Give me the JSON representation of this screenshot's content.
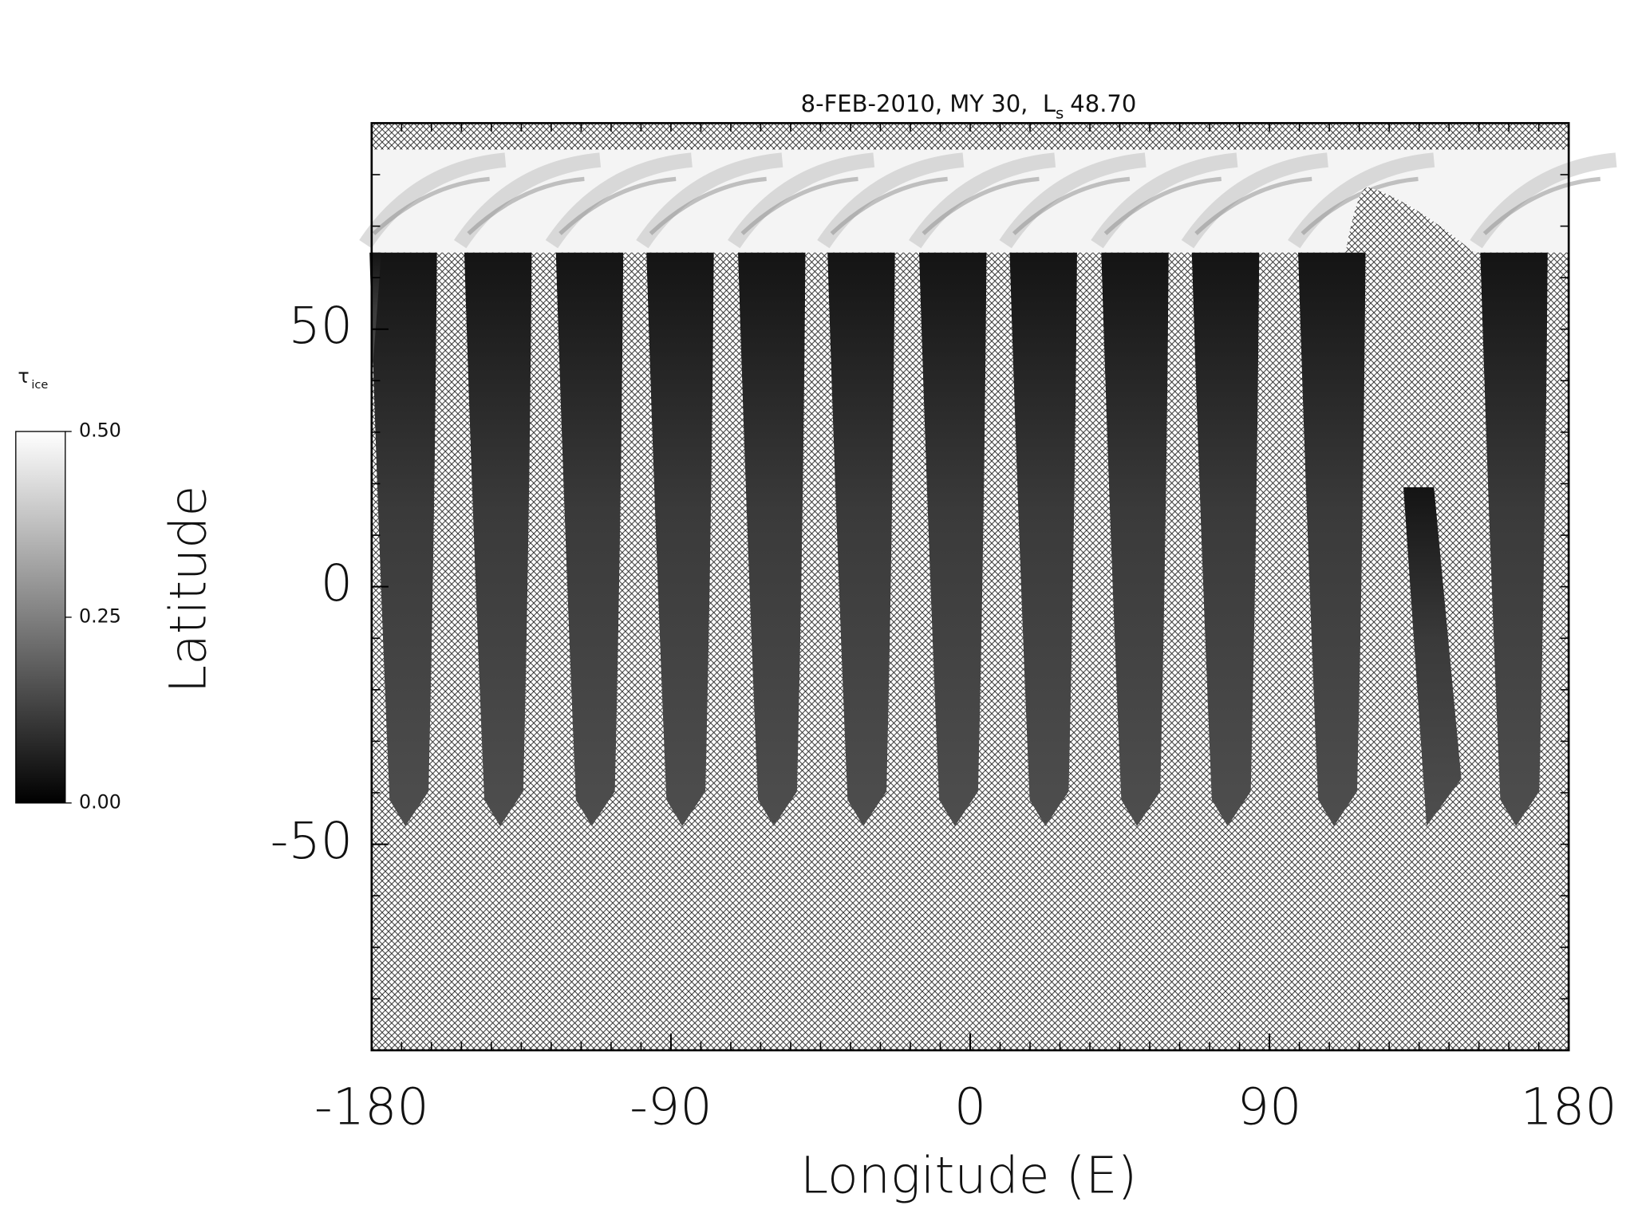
{
  "chart_data": {
    "type": "map",
    "title": [
      "8-FEB-2010, MY 30,",
      "L",
      "s",
      "48.70"
    ],
    "xlabel": "Longitude (E)",
    "ylabel": "Latitude",
    "xlim": [
      -180,
      180
    ],
    "xticks": [
      -180,
      -90,
      0,
      90,
      180
    ],
    "ylim": [
      -90,
      90
    ],
    "yticks": [
      -50,
      0,
      50
    ],
    "colorbar": {
      "label": [
        "τ",
        "ice"
      ],
      "lim": [
        0,
        0.5
      ],
      "ticks": [
        {
          "value": 0,
          "label": "0.00"
        },
        {
          "value": 0.25,
          "label": "0.25"
        },
        {
          "value": 0.5,
          "label": "0.50"
        }
      ]
    }
  }
}
